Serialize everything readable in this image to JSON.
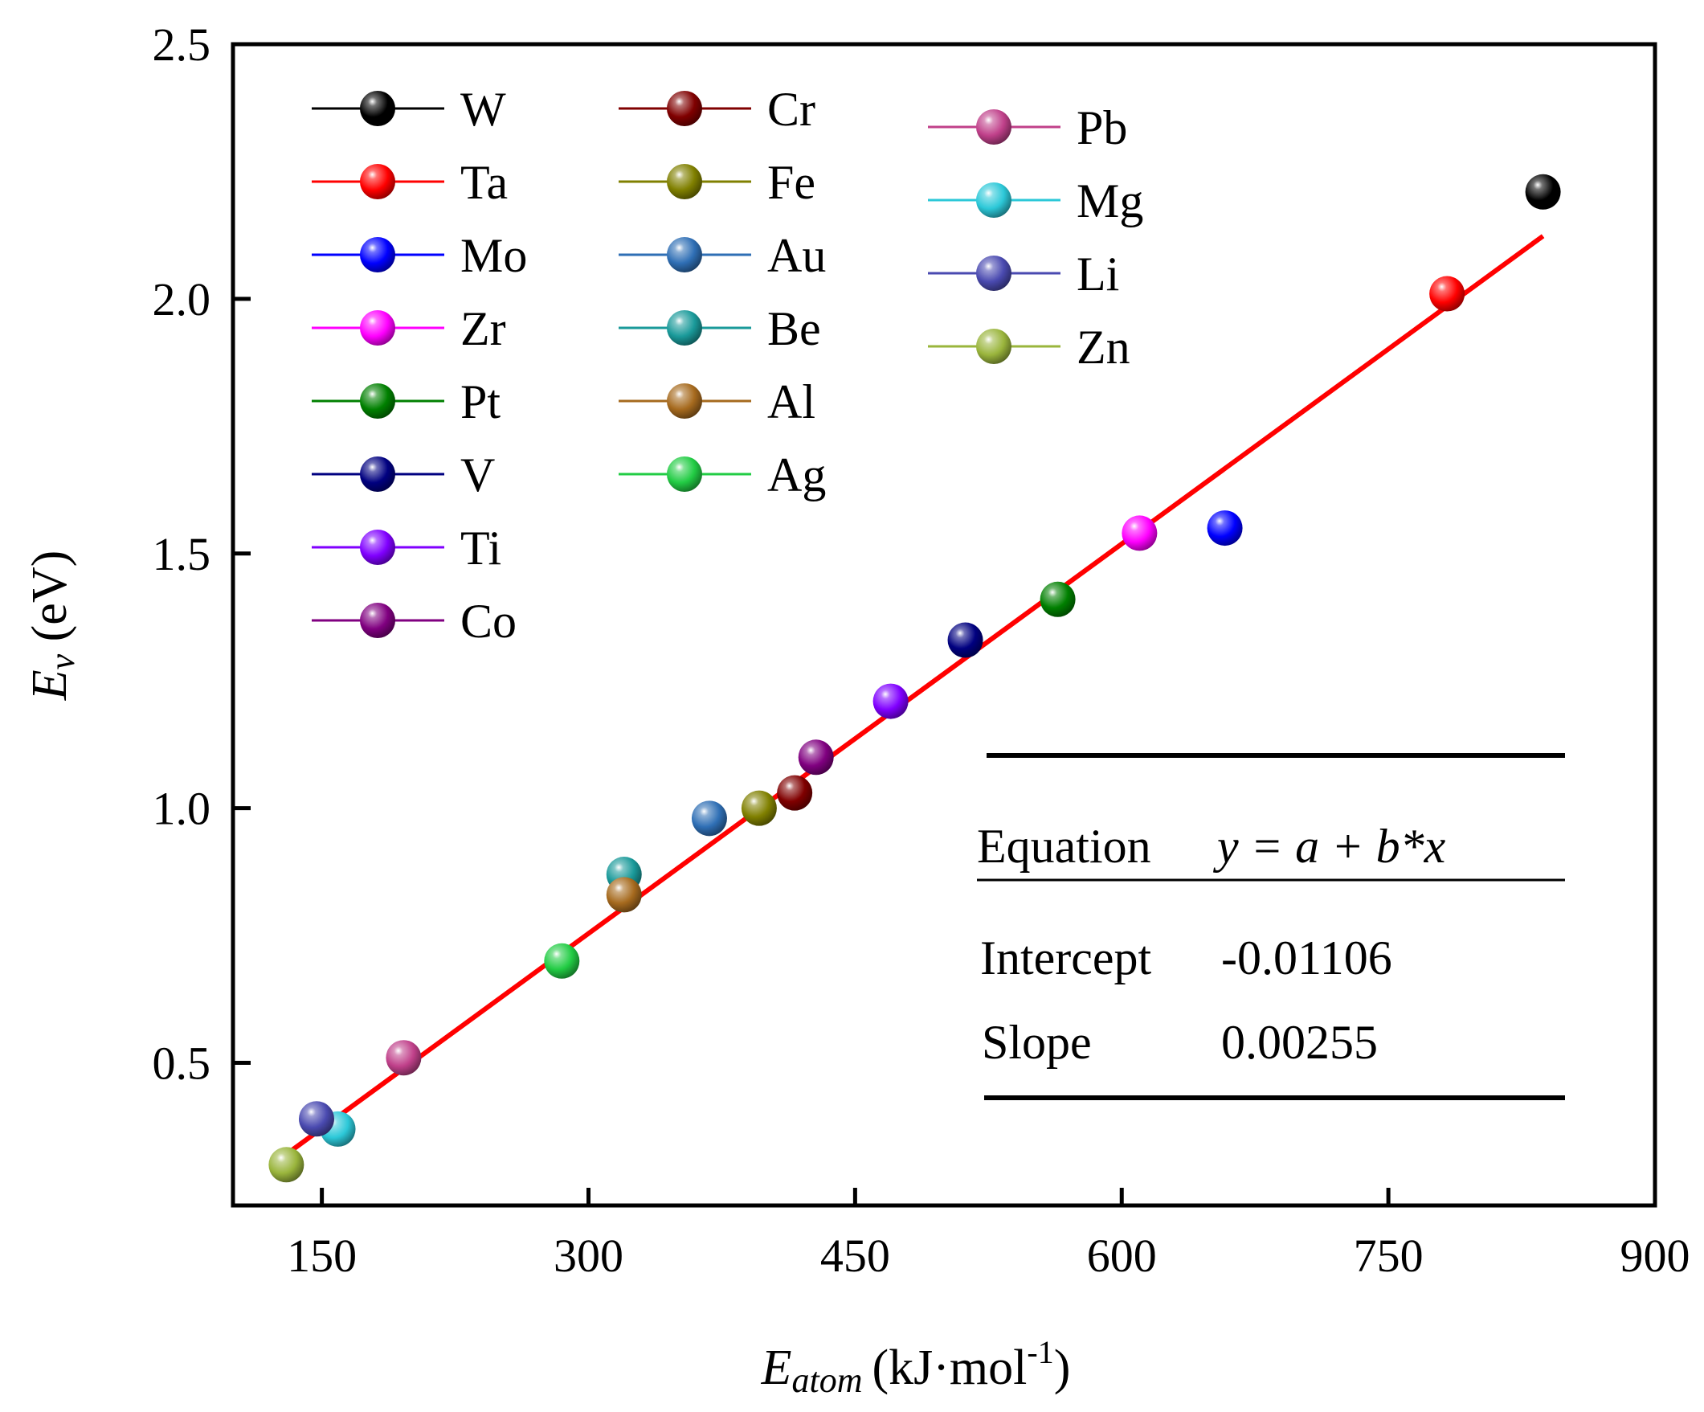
{
  "chart_data": {
    "type": "scatter",
    "title": "",
    "xlabel": {
      "main": "E",
      "sub": "atom",
      "unit": "(kJ·mol",
      "sup": "-1",
      "close": ")"
    },
    "ylabel": {
      "main": "E",
      "sub": "v",
      "unit": " (eV)"
    },
    "xlim": [
      100,
      900
    ],
    "ylim": [
      0.22,
      2.5
    ],
    "xticks": [
      150,
      300,
      450,
      600,
      750,
      900
    ],
    "yticks": [
      0.5,
      1.0,
      1.5,
      2.0,
      2.5
    ],
    "xtick_labels": [
      "150",
      "300",
      "450",
      "600",
      "750",
      "900"
    ],
    "ytick_labels": [
      "0.5",
      "1.0",
      "1.5",
      "2.0",
      "2.5"
    ],
    "grid": false,
    "legend_position": "top-left",
    "series": [
      {
        "name": "W",
        "color": "#000000",
        "x": 837,
        "y": 2.21
      },
      {
        "name": "Ta",
        "color": "#ff0000",
        "x": 783,
        "y": 2.01
      },
      {
        "name": "Mo",
        "color": "#0000ff",
        "x": 658,
        "y": 1.55
      },
      {
        "name": "Zr",
        "color": "#ff00ff",
        "x": 610,
        "y": 1.54
      },
      {
        "name": "Pt",
        "color": "#008000",
        "x": 564,
        "y": 1.41
      },
      {
        "name": "V",
        "color": "#000080",
        "x": 512,
        "y": 1.33
      },
      {
        "name": "Ti",
        "color": "#8000ff",
        "x": 470,
        "y": 1.21
      },
      {
        "name": "Co",
        "color": "#800080",
        "x": 428,
        "y": 1.1
      },
      {
        "name": "Cr",
        "color": "#800000",
        "x": 416,
        "y": 1.03
      },
      {
        "name": "Fe",
        "color": "#808000",
        "x": 396,
        "y": 1.0
      },
      {
        "name": "Au",
        "color": "#2f6fb5",
        "x": 368,
        "y": 0.98
      },
      {
        "name": "Be",
        "color": "#1a9a9a",
        "x": 320,
        "y": 0.87
      },
      {
        "name": "Al",
        "color": "#a66a1e",
        "x": 320,
        "y": 0.83
      },
      {
        "name": "Ag",
        "color": "#22cc44",
        "x": 285,
        "y": 0.7
      },
      {
        "name": "Pb",
        "color": "#c0408a",
        "x": 196,
        "y": 0.51
      },
      {
        "name": "Mg",
        "color": "#2cc8d8",
        "x": 159,
        "y": 0.37
      },
      {
        "name": "Li",
        "color": "#4a4ab0",
        "x": 147,
        "y": 0.39
      },
      {
        "name": "Zn",
        "color": "#9ab53c",
        "x": 130,
        "y": 0.3
      }
    ],
    "legend_columns": [
      [
        "W",
        "Ta",
        "Mo",
        "Zr",
        "Pt",
        "V",
        "Ti",
        "Co"
      ],
      [
        "Cr",
        "Fe",
        "Au",
        "Be",
        "Al",
        "Ag"
      ],
      [
        "Pb",
        "Mg",
        "Li",
        "Zn"
      ]
    ],
    "fit": {
      "color": "#ff0000",
      "x_range": [
        130,
        837
      ],
      "intercept": -0.01106,
      "slope": 0.00255
    },
    "stats_table": {
      "equation_label": "Equation",
      "equation": "y = a + b*x",
      "intercept_label": "Intercept",
      "intercept_value": "-0.01106",
      "slope_label": "Slope",
      "slope_value": "0.00255"
    }
  }
}
